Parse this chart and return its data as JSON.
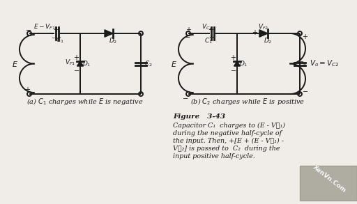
{
  "bg_color": "#f0ede8",
  "line_color": "#1a1a1a",
  "title_text": "Figure   3-43",
  "caption_line1": "Capacitor C₁  charges to (E - V₟₁)",
  "caption_line2": "during the negative half-cycle of",
  "caption_line3": "the input. Then, +[E + (E - V₟₁) -",
  "caption_line4": "V₟₂] is passed to  C₂  during the",
  "caption_line5": "input positive half-cycle.",
  "label_a": "(a) $C_1$ charges while $E$ is negative",
  "label_b": "(b) $C_2$ charges while $E$ is positive"
}
